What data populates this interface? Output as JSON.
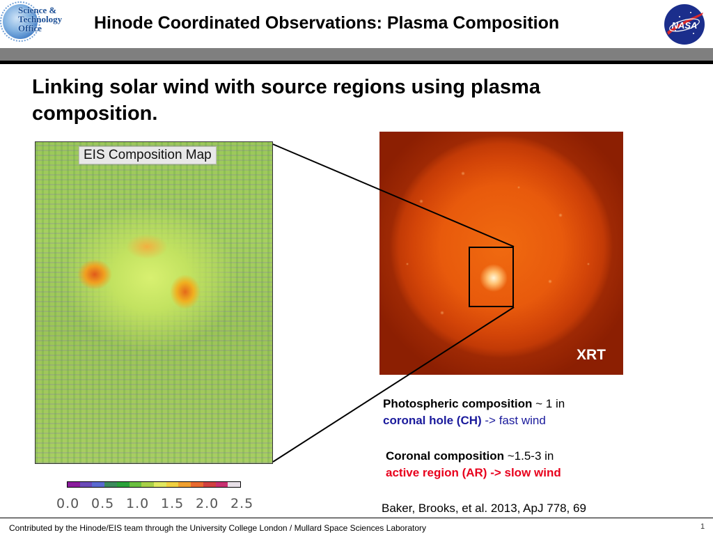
{
  "header": {
    "logo_text": [
      "Science &",
      "Technology",
      "Office"
    ],
    "title": "Hinode Coordinated Observations:  Plasma Composition",
    "nasa_logo_text": "NASA"
  },
  "main": {
    "title": "Linking solar wind with source regions using plasma composition."
  },
  "eis_map": {
    "label": "EIS Composition Map",
    "colorbar_colors": [
      "#8a1c9c",
      "#6a4ab8",
      "#5a6ad0",
      "#3c8a5c",
      "#2aa23a",
      "#6ac040",
      "#a8d048",
      "#e0e860",
      "#f0d040",
      "#f0a030",
      "#e86a30",
      "#d04040",
      "#c83070",
      "#e8e0e8"
    ],
    "colorbar_ticks": [
      "0.0",
      "0.5",
      "1.0",
      "1.5",
      "2.0",
      "2.5"
    ]
  },
  "xrt": {
    "label": "XRT"
  },
  "notes": {
    "photospheric_bold": "Photospheric composition",
    "photospheric_rest": " ~ 1 in",
    "ch_bold": "coronal hole (CH)",
    "ch_rest": " -> fast wind",
    "coronal_bold": "Coronal composition",
    "coronal_rest": " ~1.5-3 in",
    "ar_line": "active region (AR) -> slow wind",
    "citation": "Baker, Brooks, et al. 2013, ApJ 778, 69"
  },
  "footer": {
    "text": "Contributed by the Hinode/EIS team through the University College London / Mullard Space Sciences Laboratory",
    "page_number": "1"
  }
}
